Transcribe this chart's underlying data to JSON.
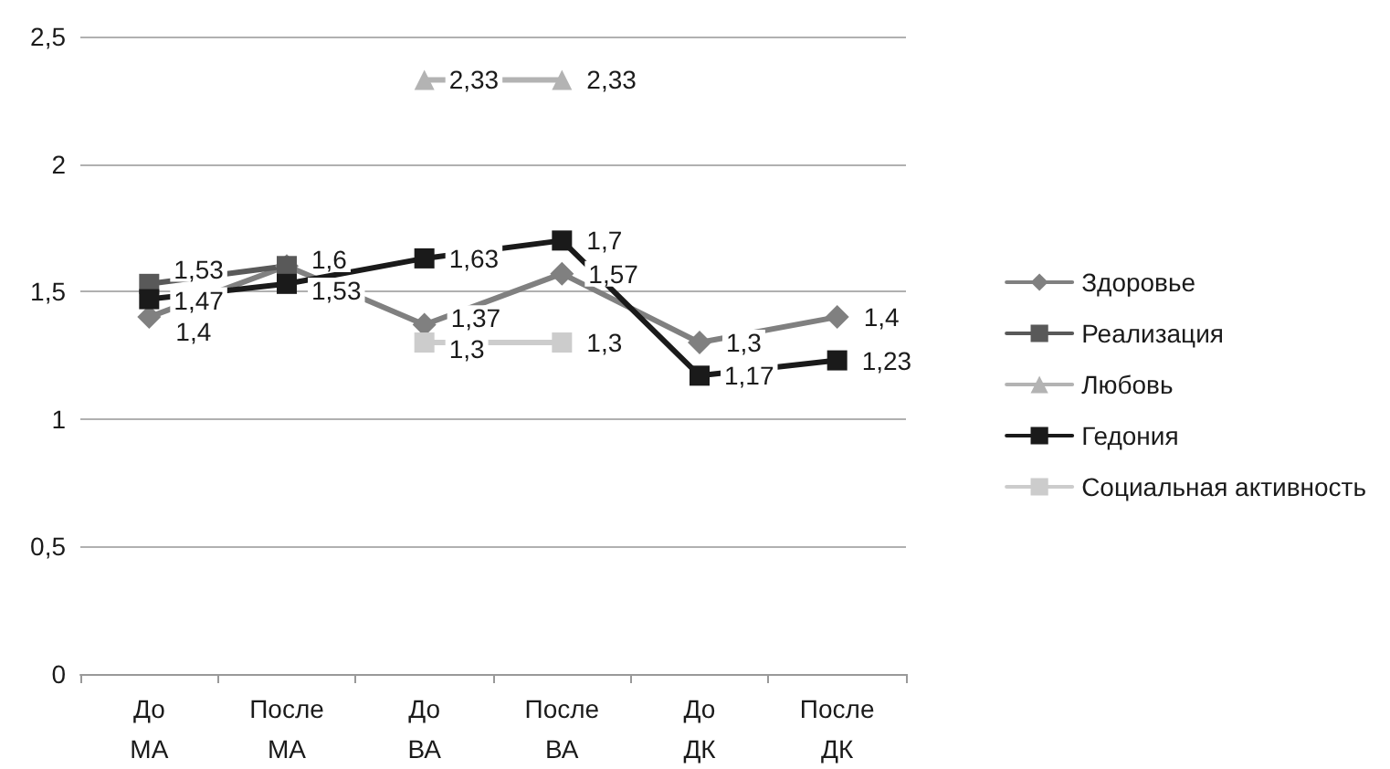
{
  "chart_data": {
    "type": "line",
    "categories": [
      "До МА",
      "После МА",
      "До ВА",
      "После ВА",
      "До ДК",
      "После ДК"
    ],
    "series": [
      {
        "name": "Здоровье",
        "color": "#808080",
        "marker": "diamond",
        "values": [
          1.4,
          1.6,
          1.37,
          1.57,
          1.3,
          1.4
        ],
        "value_labels": [
          "1,4",
          null,
          "1,37",
          "1,57",
          "1,3",
          "1,4"
        ]
      },
      {
        "name": "Реализация",
        "color": "#595959",
        "marker": "square",
        "values": [
          1.53,
          1.6,
          null,
          null,
          null,
          null
        ],
        "value_labels": [
          "1,53",
          "1,6",
          null,
          null,
          null,
          null
        ]
      },
      {
        "name": "Любовь",
        "color": "#b3b3b3",
        "marker": "triangle",
        "values": [
          null,
          null,
          2.33,
          2.33,
          null,
          null
        ],
        "value_labels": [
          null,
          null,
          "2,33",
          "2,33",
          null,
          null
        ]
      },
      {
        "name": "Гедония",
        "color": "#1a1a1a",
        "marker": "square",
        "values": [
          1.47,
          1.53,
          1.63,
          1.7,
          1.17,
          1.23
        ],
        "value_labels": [
          "1,47",
          "1,53",
          "1,63",
          "1,7",
          "1,17",
          "1,23"
        ]
      },
      {
        "name": "Социальная активность",
        "color": "#cccccc",
        "marker": "square",
        "values": [
          null,
          null,
          1.3,
          1.3,
          null,
          null
        ],
        "value_labels": [
          null,
          null,
          "1,3",
          "1,3",
          null,
          null
        ]
      }
    ],
    "ylim": [
      0,
      2.5
    ],
    "yticks": [
      {
        "value": 0,
        "label": "0"
      },
      {
        "value": 0.5,
        "label": "0,5"
      },
      {
        "value": 1,
        "label": "1"
      },
      {
        "value": 1.5,
        "label": "1,5"
      },
      {
        "value": 2,
        "label": "2"
      },
      {
        "value": 2.5,
        "label": "2,5"
      }
    ],
    "grid": "y",
    "legend": "right"
  }
}
